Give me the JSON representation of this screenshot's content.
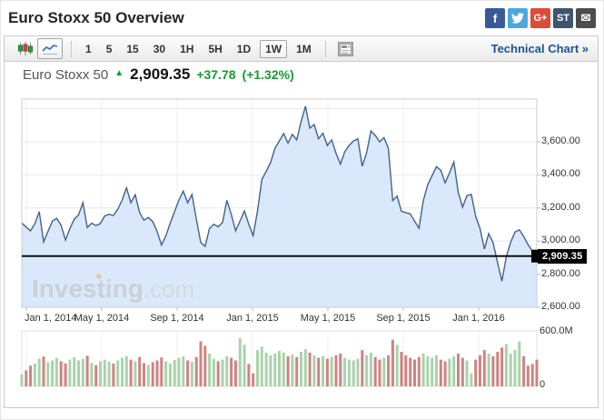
{
  "page": {
    "title": "Euro Stoxx 50 Overview"
  },
  "social": [
    {
      "name": "facebook",
      "color": "#3b5998",
      "glyph": "f",
      "type": "text"
    },
    {
      "name": "twitter",
      "color": "#4da7de",
      "glyph": "",
      "type": "bird"
    },
    {
      "name": "googleplus",
      "color": "#dd4b39",
      "glyph": "G+",
      "type": "text"
    },
    {
      "name": "stocktwits",
      "color": "#3d566d",
      "glyph": "ST",
      "type": "text"
    },
    {
      "name": "email",
      "color": "#4d4d4d",
      "glyph": "✉",
      "type": "text"
    }
  ],
  "toolbar": {
    "chart_type_buttons": [
      "candlestick",
      "line"
    ],
    "active_chart_type": "line",
    "intervals": [
      "1",
      "5",
      "15",
      "30",
      "1H",
      "5H",
      "1D",
      "1W",
      "1M"
    ],
    "active_interval": "1W",
    "technical_chart_label": "Technical Chart »"
  },
  "quote": {
    "name": "Euro Stoxx 50",
    "arrow": "▲",
    "last": "2,909.35",
    "change": "+37.78",
    "change_pct": "(+1.32%)",
    "up_color": "#149b2c"
  },
  "watermark": {
    "bold": "Investing",
    "light": ".com"
  },
  "chart_data": {
    "type": "area",
    "title": "Euro Stoxx 50 — weekly (1W) price with volume",
    "x_ticks": [
      "Jan 1, 2014",
      "May 1, 2014",
      "Sep 1, 2014",
      "Jan 1, 2015",
      "May 1, 2015",
      "Sep 1, 2015",
      "Jan 1, 2016"
    ],
    "y_ticks": [
      3600,
      3400,
      3200,
      3000,
      2800,
      2600
    ],
    "y_gridlines": [
      3800,
      3600,
      3400,
      3200,
      3000,
      2800
    ],
    "ylim": [
      2600,
      3858
    ],
    "last_price": 2909.35,
    "legend_position": "none",
    "grid": true,
    "style": {
      "line": "#44618c",
      "fill": "#d9e8fa",
      "grid": "#e8e8e8",
      "vgrid": "#ececec",
      "border": "#cccccc",
      "last_line": "#000000",
      "vol_up": "#a9d3ab",
      "vol_down": "#cf8383",
      "watermark": "#cbd0d8"
    },
    "price": {
      "series_name": "Euro Stoxx 50",
      "values": [
        3110,
        3085,
        3062,
        3105,
        3178,
        2995,
        3058,
        3120,
        3138,
        3096,
        3006,
        3075,
        3132,
        3158,
        3232,
        3082,
        3108,
        3094,
        3106,
        3152,
        3162,
        3155,
        3192,
        3248,
        3322,
        3232,
        3280,
        3172,
        3126,
        3142,
        3118,
        3058,
        2976,
        3032,
        3108,
        3178,
        3248,
        3302,
        3232,
        3282,
        3132,
        2992,
        2968,
        3076,
        3102,
        3086,
        3112,
        3246,
        3162,
        3062,
        3122,
        3182,
        3102,
        3032,
        3182,
        3372,
        3422,
        3475,
        3560,
        3605,
        3650,
        3592,
        3645,
        3612,
        3722,
        3815,
        3682,
        3705,
        3618,
        3652,
        3578,
        3612,
        3530,
        3465,
        3540,
        3578,
        3605,
        3618,
        3452,
        3532,
        3665,
        3638,
        3600,
        3625,
        3560,
        3245,
        3272,
        3180,
        3172,
        3165,
        3120,
        3078,
        3245,
        3340,
        3395,
        3450,
        3428,
        3352,
        3412,
        3478,
        3295,
        3205,
        3275,
        3282,
        3150,
        3075,
        2952,
        3045,
        2990,
        2870,
        2758,
        2905,
        2992,
        3055,
        3068,
        3028,
        2978,
        2940,
        2909.35
      ]
    },
    "volume": {
      "ylabel_top": "600.0M",
      "ylabel_bottom": "0",
      "max": 600,
      "unit": "M",
      "values": [
        140,
        185,
        240,
        265,
        320,
        345,
        280,
        300,
        330,
        290,
        265,
        310,
        335,
        300,
        320,
        355,
        270,
        245,
        290,
        310,
        285,
        265,
        300,
        330,
        350,
        310,
        290,
        340,
        270,
        250,
        280,
        300,
        335,
        290,
        265,
        305,
        330,
        345,
        300,
        285,
        340,
        520,
        470,
        380,
        320,
        290,
        310,
        350,
        330,
        300,
        560,
        480,
        260,
        150,
        420,
        460,
        390,
        360,
        380,
        410,
        390,
        350,
        370,
        340,
        400,
        430,
        390,
        360,
        330,
        350,
        320,
        340,
        360,
        380,
        330,
        310,
        300,
        320,
        420,
        360,
        390,
        340,
        310,
        330,
        360,
        540,
        480,
        400,
        360,
        330,
        310,
        340,
        380,
        350,
        330,
        360,
        310,
        290,
        320,
        350,
        380,
        330,
        300,
        150,
        310,
        360,
        420,
        380,
        350,
        400,
        450,
        490,
        380,
        420,
        520,
        350,
        240,
        260,
        310
      ],
      "colors": "grrggrgggrrggggrgrgggrgggrgrrgrrrgggggrgrrrggrggrrggrrgggggggrgrggrgrgrgrrggggrggrrgrrgrrrrrggggrrggrrggrrrgrrrggggrrrr"
    }
  }
}
